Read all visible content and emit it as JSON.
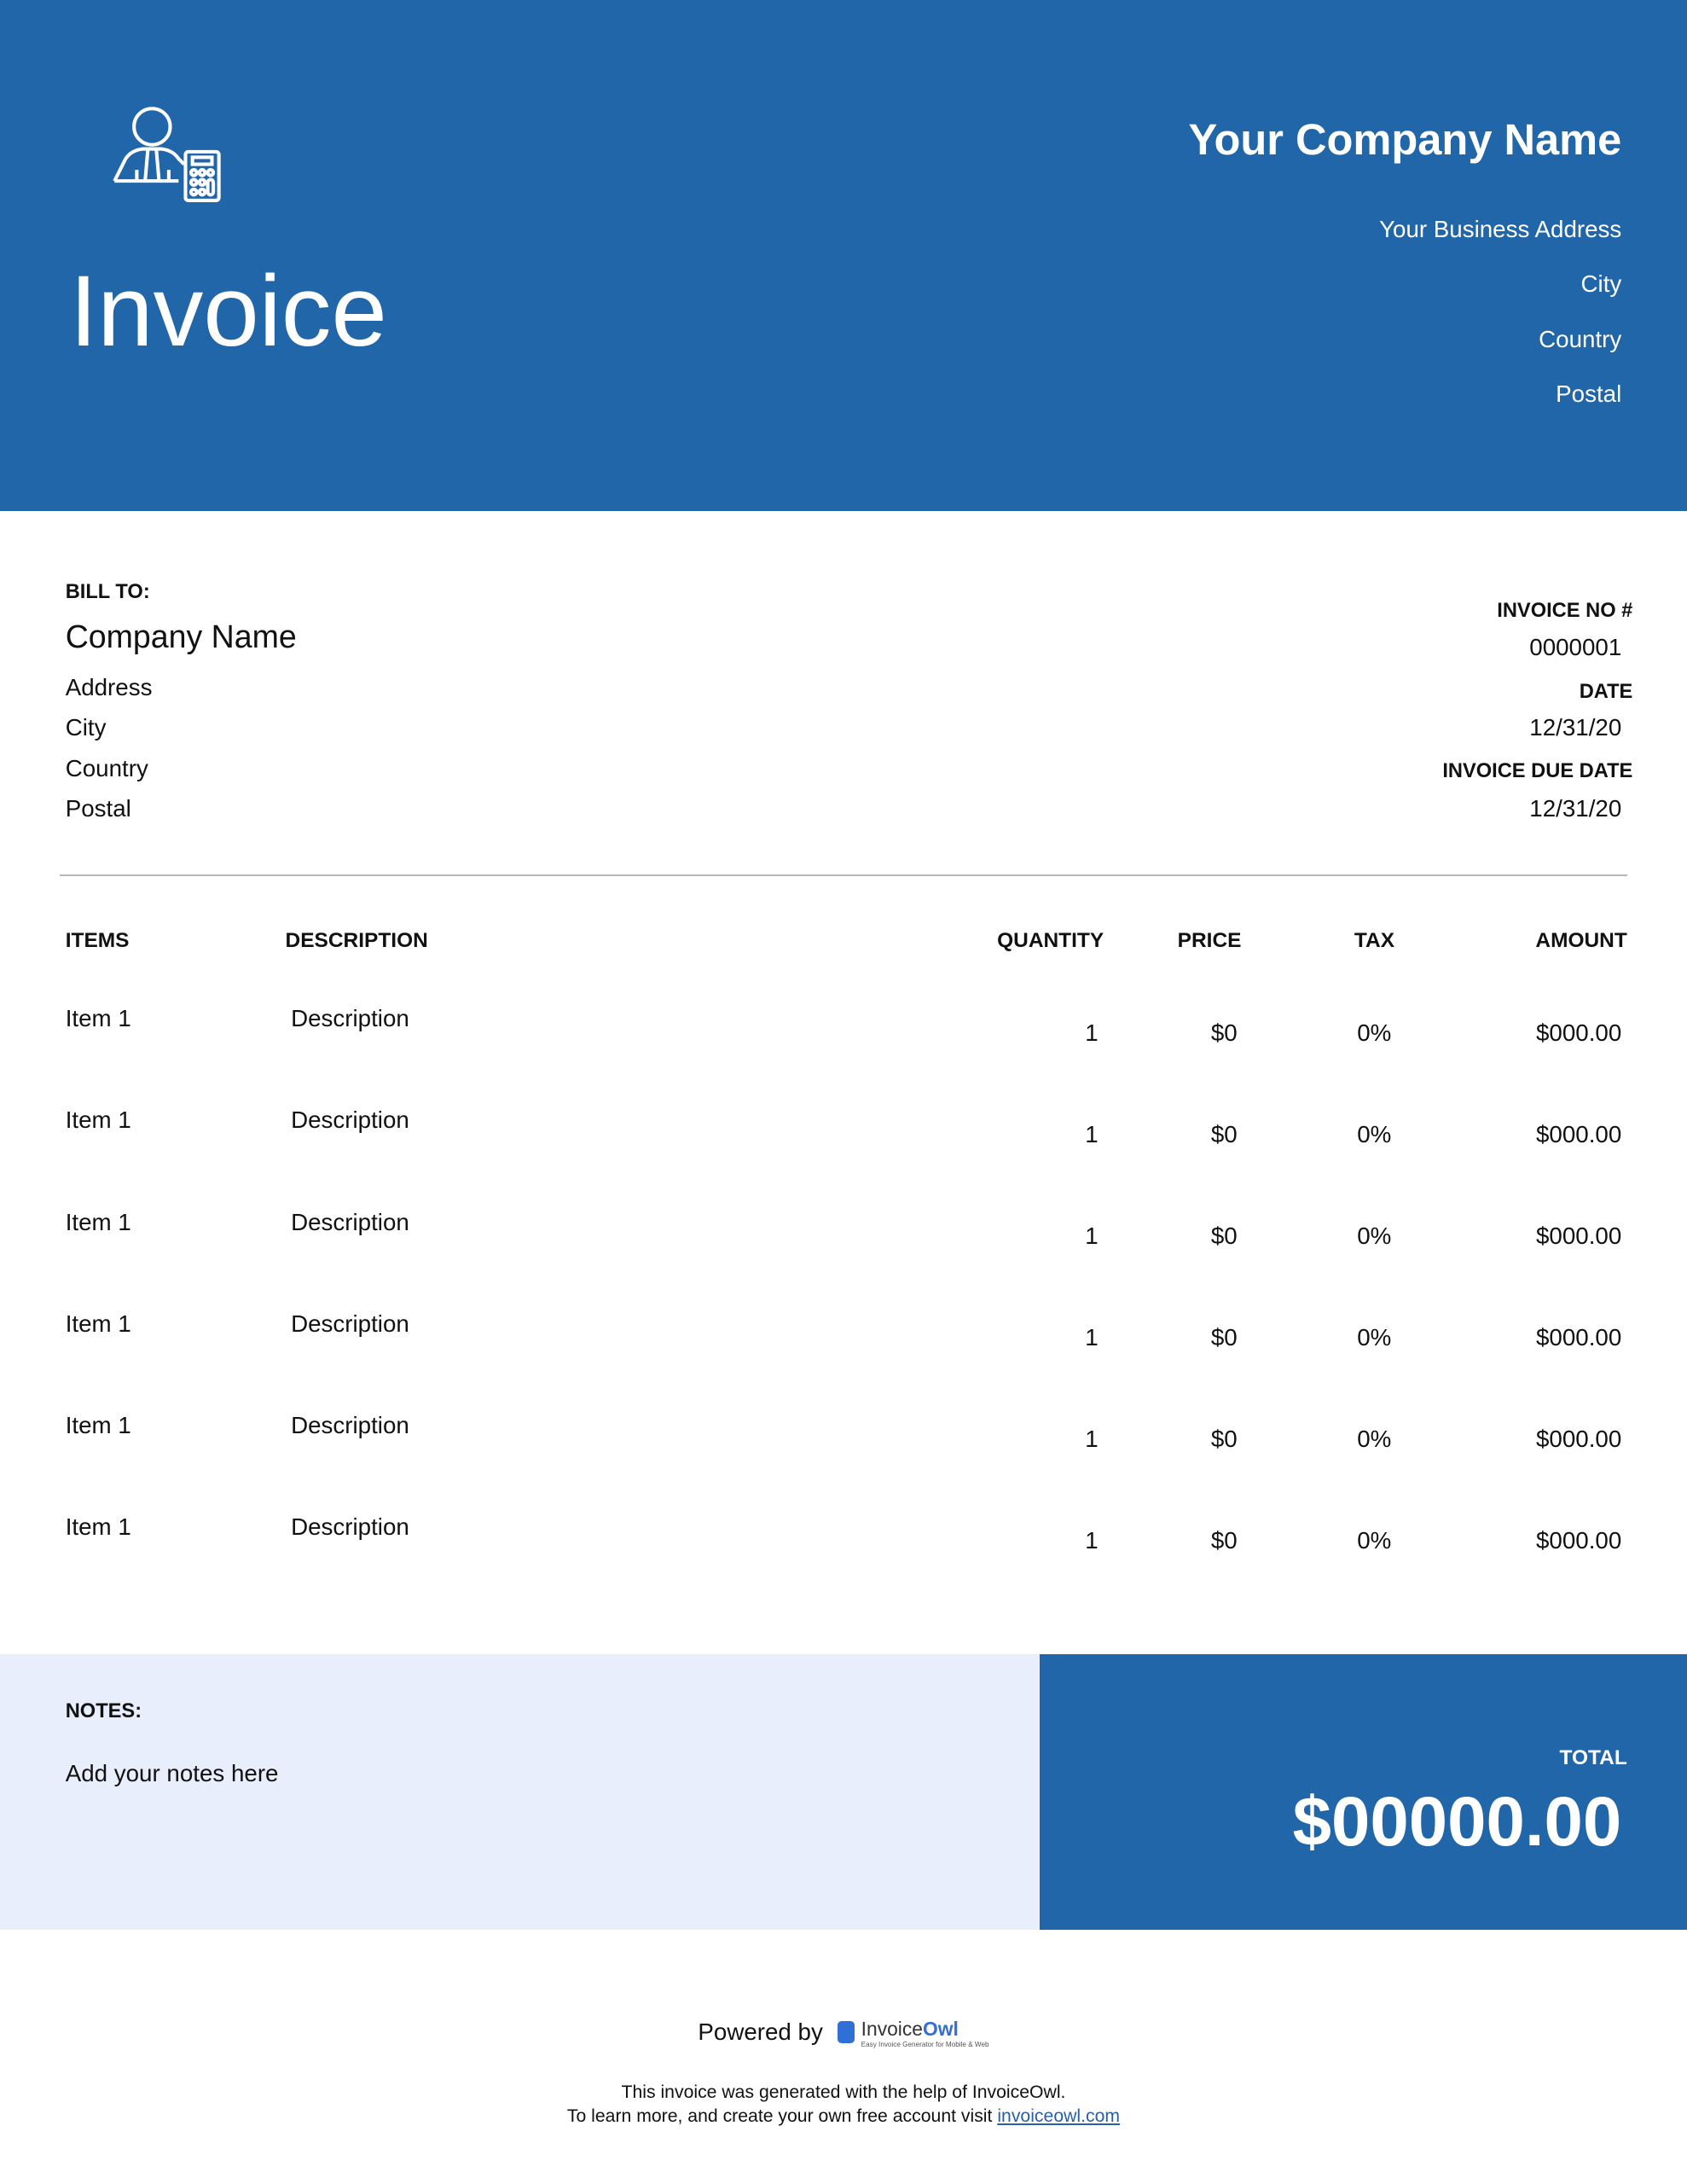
{
  "header": {
    "title": "Invoice",
    "company_name": "Your Company Name",
    "address_lines": [
      "Your Business Address",
      "City",
      "Country",
      "Postal"
    ],
    "logo_icon": "accountant-calculator-icon",
    "brand_color": "#2166a8"
  },
  "bill_to": {
    "label": "BILL TO:",
    "company": "Company Name",
    "lines": [
      "Address",
      "City",
      "Country",
      "Postal"
    ]
  },
  "meta": {
    "invoice_no_label": "INVOICE NO #",
    "invoice_no": "0000001",
    "date_label": "DATE",
    "date": "12/31/20",
    "due_label": "INVOICE DUE DATE",
    "due": "12/31/20"
  },
  "table": {
    "headers": [
      "ITEMS",
      "DESCRIPTION",
      "QUANTITY",
      "PRICE",
      "TAX",
      "AMOUNT"
    ],
    "rows": [
      {
        "item": "Item 1",
        "description": "Description",
        "quantity": "1",
        "price": "$0",
        "tax": "0%",
        "amount": "$000.00"
      },
      {
        "item": "Item 1",
        "description": "Description",
        "quantity": "1",
        "price": "$0",
        "tax": "0%",
        "amount": "$000.00"
      },
      {
        "item": "Item 1",
        "description": "Description",
        "quantity": "1",
        "price": "$0",
        "tax": "0%",
        "amount": "$000.00"
      },
      {
        "item": "Item 1",
        "description": "Description",
        "quantity": "1",
        "price": "$0",
        "tax": "0%",
        "amount": "$000.00"
      },
      {
        "item": "Item 1",
        "description": "Description",
        "quantity": "1",
        "price": "$0",
        "tax": "0%",
        "amount": "$000.00"
      },
      {
        "item": "Item 1",
        "description": "Description",
        "quantity": "1",
        "price": "$0",
        "tax": "0%",
        "amount": "$000.00"
      }
    ]
  },
  "notes": {
    "label": "NOTES:",
    "text": "Add your notes here",
    "bg_color": "#e8eefb"
  },
  "total": {
    "label": "TOTAL",
    "value": "$00000.00"
  },
  "footer": {
    "powered_by": "Powered by",
    "brand": "Invoice",
    "brand_accent": "Owl",
    "tagline": "Easy Invoice Generator for Mobile & Web",
    "line1": "This invoice was generated with the help of InvoiceOwl.",
    "line2": "To learn more, and create your own free account visit ",
    "link": "invoiceowl.com"
  }
}
